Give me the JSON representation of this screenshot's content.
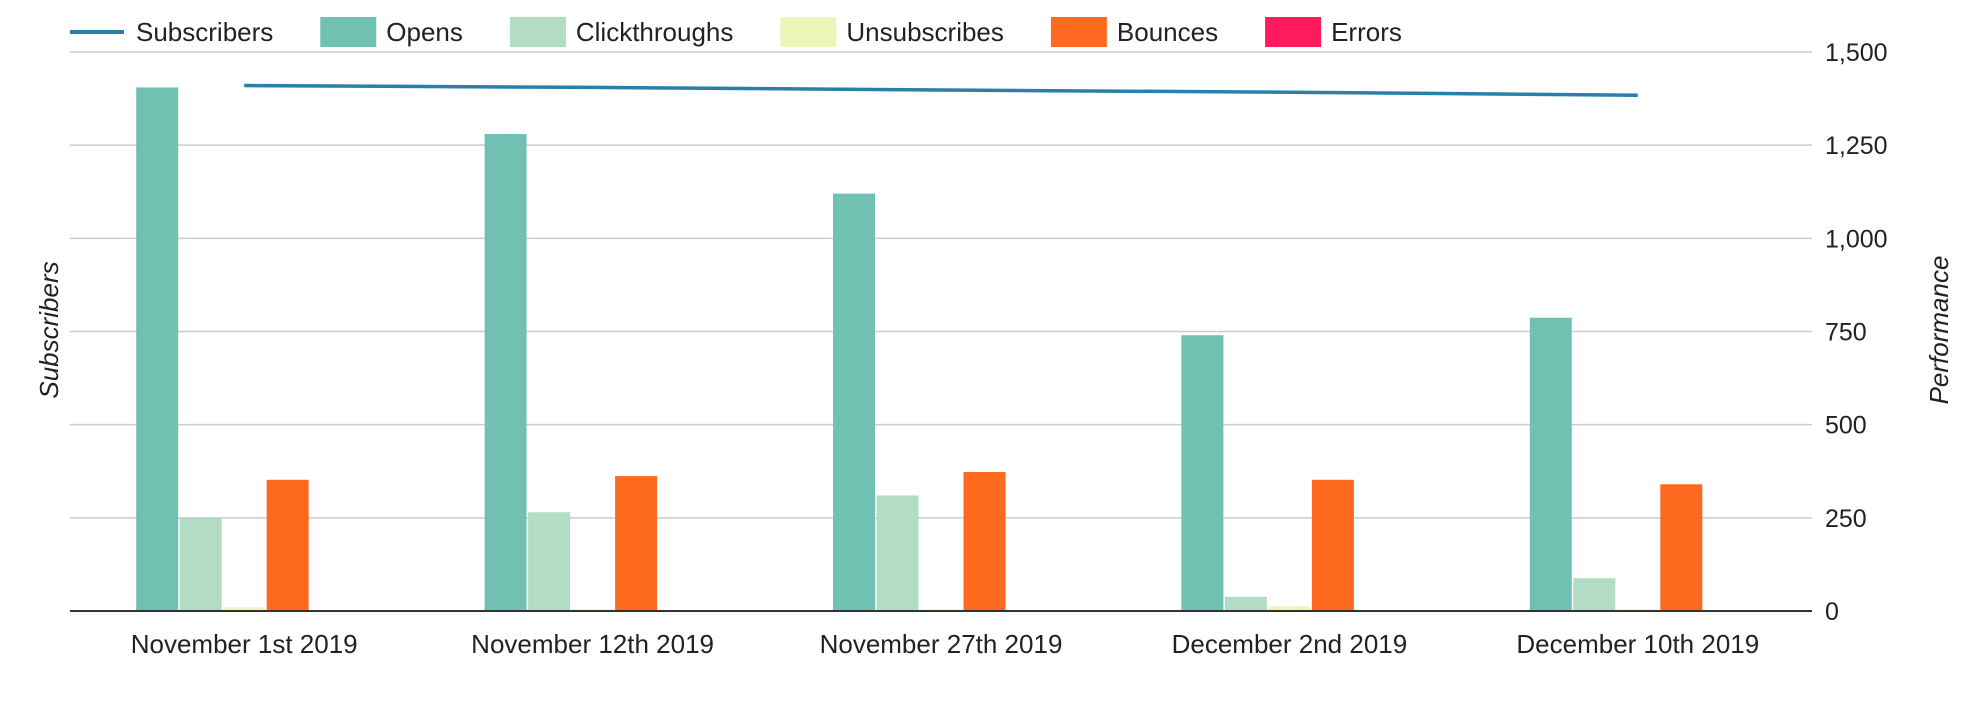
{
  "chart_data": {
    "type": "bar",
    "categories": [
      "November 1st 2019",
      "November 12th 2019",
      "November 27th 2019",
      "December 2nd 2019",
      "December 10th 2019"
    ],
    "series": [
      {
        "name": "Subscribers",
        "kind": "line",
        "color": "#2a7fa8",
        "values": [
          1410,
          1405,
          1398,
          1392,
          1384
        ]
      },
      {
        "name": "Opens",
        "kind": "bar",
        "color": "#71c1b3",
        "values": [
          1405,
          1280,
          1120,
          740,
          787
        ]
      },
      {
        "name": "Clickthroughs",
        "kind": "bar",
        "color": "#b2dcc3",
        "values": [
          250,
          265,
          310,
          38,
          88
        ]
      },
      {
        "name": "Unsubscribes",
        "kind": "bar",
        "color": "#eef5b8",
        "values": [
          10,
          4,
          4,
          12,
          4
        ]
      },
      {
        "name": "Bounces",
        "kind": "bar",
        "color": "#fd6a1f",
        "values": [
          352,
          362,
          373,
          352,
          340
        ]
      },
      {
        "name": "Errors",
        "kind": "bar",
        "color": "#ff1a5e",
        "values": [
          0,
          0,
          0,
          0,
          0
        ]
      }
    ],
    "ylabel_left": "Subscribers",
    "ylabel_right": "Performance",
    "ylim": [
      0,
      1500
    ],
    "y_ticks": [
      0,
      250,
      500,
      750,
      1000,
      1250,
      1500
    ],
    "y_tick_labels": [
      "0",
      "250",
      "500",
      "750",
      "1,000",
      "1,250",
      "1,500"
    ],
    "grid": true,
    "legend_position": "top-left"
  }
}
